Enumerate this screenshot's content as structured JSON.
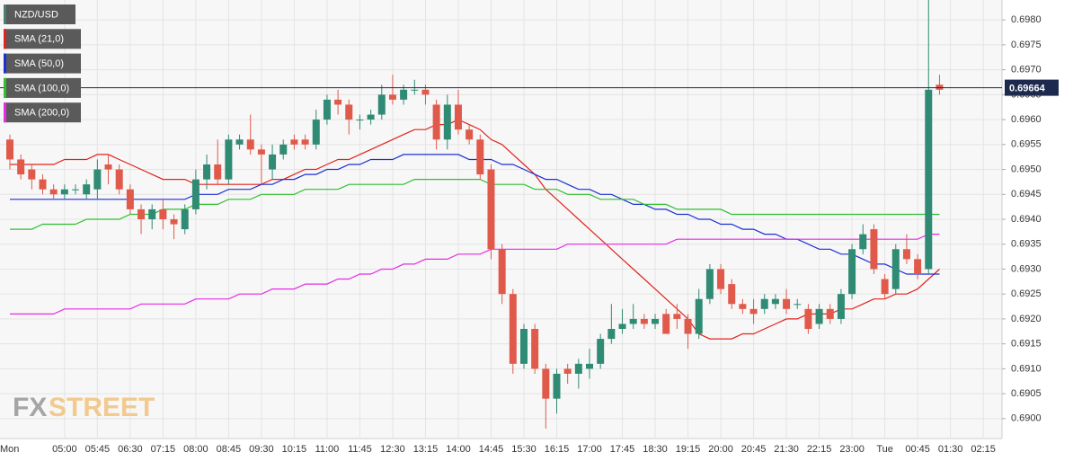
{
  "chart_data": {
    "type": "candlestick",
    "categories": [
      "Mon",
      null,
      null,
      null,
      null,
      "05:00",
      null,
      null,
      "05:45",
      null,
      null,
      "06:30",
      null,
      null,
      "07:15",
      null,
      null,
      "08:00",
      null,
      null,
      "08:45",
      null,
      null,
      "09:30",
      null,
      null,
      "10:15",
      null,
      null,
      "11:00",
      null,
      null,
      "11:45",
      null,
      null,
      "12:30",
      null,
      null,
      "13:15",
      null,
      null,
      "14:00",
      null,
      null,
      "14:45",
      null,
      null,
      "15:30",
      null,
      null,
      "16:15",
      null,
      null,
      "17:00",
      null,
      null,
      "17:45",
      null,
      null,
      "18:30",
      null,
      null,
      "19:15",
      null,
      null,
      "20:00",
      null,
      null,
      "20:45",
      null,
      null,
      "21:30",
      null,
      null,
      "22:15",
      null,
      null,
      "23:00",
      null,
      null,
      "Tue",
      null,
      null,
      "00:45",
      null,
      null,
      "01:30",
      null,
      null,
      "02:15"
    ],
    "series": [
      {
        "name": "NZD/USD",
        "color": "#4a7f6c",
        "up_color": "#2f8b73",
        "down_color": "#e05a4b",
        "open": [
          0.6956,
          0.6952,
          0.695,
          0.6948,
          0.6946,
          0.6945,
          0.6946,
          0.6945,
          0.6946,
          0.6951,
          0.695,
          0.6946,
          0.6942,
          0.694,
          0.6942,
          0.694,
          0.6938,
          0.6942,
          0.6948,
          0.6951,
          0.6948,
          0.6955,
          0.6956,
          0.6954,
          0.695,
          0.6953,
          0.6956,
          0.6956,
          0.6955,
          0.696,
          0.6964,
          0.6963,
          0.696,
          0.696,
          0.6961,
          0.6965,
          0.6964,
          0.6966,
          0.6966,
          0.6963,
          0.6956,
          0.6963,
          0.6958,
          0.6956,
          0.695,
          0.6934,
          0.6925,
          0.6911,
          0.6918,
          0.691,
          0.6904,
          0.691,
          0.6909,
          0.691,
          0.6911,
          0.6916,
          0.6918,
          0.6919,
          0.692,
          0.6919,
          0.6921,
          0.6921,
          0.692,
          0.6917,
          0.6924,
          0.693,
          0.6927,
          0.6923,
          0.6922,
          0.6922,
          0.6923,
          0.6924,
          0.6923,
          0.6922,
          0.6919,
          0.6922,
          0.692,
          0.6925,
          0.6934,
          0.6938,
          0.6928,
          0.6926,
          0.6934,
          0.6932,
          0.693,
          0.6967,
          null,
          null,
          null,
          null
        ],
        "high": [
          0.6957,
          0.6953,
          0.6951,
          0.6949,
          0.6947,
          0.6947,
          0.6947,
          0.6948,
          0.6952,
          0.6953,
          0.6951,
          0.6947,
          0.6943,
          0.6943,
          0.6944,
          0.6941,
          0.6943,
          0.695,
          0.6953,
          0.6956,
          0.6957,
          0.6957,
          0.6961,
          0.6955,
          0.6955,
          0.6956,
          0.6957,
          0.6957,
          0.6962,
          0.6965,
          0.6966,
          0.6964,
          0.6961,
          0.6962,
          0.6967,
          0.6969,
          0.6967,
          0.6968,
          0.6967,
          0.6964,
          0.6965,
          0.6966,
          0.6959,
          0.6957,
          0.6951,
          0.6935,
          0.6926,
          0.6919,
          0.6919,
          0.6911,
          0.691,
          0.6911,
          0.6912,
          0.6914,
          0.6917,
          0.6923,
          0.6922,
          0.6923,
          0.6921,
          0.6921,
          0.6922,
          0.6923,
          0.6921,
          0.6926,
          0.6931,
          0.6931,
          0.6928,
          0.6924,
          0.6924,
          0.6925,
          0.6925,
          0.6926,
          0.6924,
          0.6923,
          0.6923,
          0.6923,
          0.6926,
          0.6935,
          0.6939,
          0.6939,
          0.6929,
          0.6935,
          0.6937,
          0.6933,
          0.6984,
          0.6969,
          null,
          null,
          null,
          null
        ],
        "low": [
          0.695,
          0.6948,
          0.6946,
          0.6945,
          0.6944,
          0.6944,
          0.6945,
          0.6944,
          0.6944,
          0.6947,
          0.6945,
          0.6941,
          0.6937,
          0.6938,
          0.6938,
          0.6936,
          0.6937,
          0.6941,
          0.6946,
          0.6947,
          0.6947,
          0.6954,
          0.6953,
          0.6947,
          0.6948,
          0.6952,
          0.6954,
          0.6954,
          0.6954,
          0.6959,
          0.6961,
          0.6957,
          0.6958,
          0.6959,
          0.696,
          0.6963,
          0.6963,
          0.6965,
          0.6963,
          0.6954,
          0.6954,
          0.6957,
          0.6955,
          0.6948,
          0.6932,
          0.6923,
          0.6909,
          0.691,
          0.6909,
          0.6898,
          0.6901,
          0.6907,
          0.6906,
          0.6908,
          0.691,
          0.6915,
          0.6917,
          0.6918,
          0.6918,
          0.6918,
          0.6917,
          0.6918,
          0.6914,
          0.6916,
          0.6923,
          0.6925,
          0.6922,
          0.6921,
          0.6919,
          0.6921,
          0.6922,
          0.6921,
          0.6922,
          0.6917,
          0.6918,
          0.6919,
          0.6919,
          0.6924,
          0.6933,
          0.6929,
          0.6924,
          0.6925,
          0.6931,
          0.6928,
          0.6929,
          0.6965,
          null,
          null,
          null,
          null
        ],
        "close": [
          0.6952,
          0.6949,
          0.6948,
          0.6946,
          0.6945,
          0.6946,
          0.6946,
          0.6947,
          0.695,
          0.695,
          0.6946,
          0.6942,
          0.694,
          0.6942,
          0.694,
          0.6939,
          0.6942,
          0.6948,
          0.6951,
          0.6948,
          0.6956,
          0.6956,
          0.6954,
          0.6953,
          0.6953,
          0.6955,
          0.6955,
          0.6955,
          0.696,
          0.6964,
          0.6963,
          0.696,
          0.696,
          0.6961,
          0.6965,
          0.6964,
          0.6966,
          0.6966,
          0.6965,
          0.6956,
          0.6963,
          0.6958,
          0.6956,
          0.6949,
          0.6934,
          0.6925,
          0.6911,
          0.6918,
          0.691,
          0.6904,
          0.6909,
          0.6909,
          0.6911,
          0.6911,
          0.6916,
          0.6918,
          0.6919,
          0.692,
          0.6919,
          0.692,
          0.6917,
          0.692,
          0.6917,
          0.6924,
          0.693,
          0.6926,
          0.6923,
          0.6922,
          0.6921,
          0.6924,
          0.6924,
          0.6922,
          0.6923,
          0.6918,
          0.6922,
          0.692,
          0.6925,
          0.6934,
          0.6937,
          0.693,
          0.6925,
          0.6934,
          0.6932,
          0.6929,
          0.6966,
          0.6966,
          null,
          null,
          null,
          null
        ]
      },
      {
        "name": "SMA (21,0)",
        "color": "#e0231c",
        "values": [
          0.6951,
          0.6951,
          0.6951,
          0.6951,
          0.6951,
          0.6952,
          0.6952,
          0.6952,
          0.6953,
          0.6953,
          0.6952,
          0.6951,
          0.695,
          0.6949,
          0.6948,
          0.6948,
          0.6948,
          0.6947,
          0.6947,
          0.6947,
          0.6947,
          0.6947,
          0.6947,
          0.6947,
          0.6948,
          0.6948,
          0.6949,
          0.695,
          0.695,
          0.6951,
          0.6952,
          0.6952,
          0.6953,
          0.6954,
          0.6955,
          0.6956,
          0.6957,
          0.6958,
          0.6958,
          0.6959,
          0.6959,
          0.696,
          0.6959,
          0.6958,
          0.6956,
          0.6955,
          0.6953,
          0.6951,
          0.6949,
          0.6946,
          0.6944,
          0.6942,
          0.694,
          0.6938,
          0.6936,
          0.6934,
          0.6932,
          0.693,
          0.6928,
          0.6926,
          0.6924,
          0.6922,
          0.692,
          0.6917,
          0.6916,
          0.6916,
          0.6916,
          0.6917,
          0.6917,
          0.6918,
          0.6919,
          0.692,
          0.692,
          0.6921,
          0.6921,
          0.6921,
          0.6922,
          0.6922,
          0.6923,
          0.6924,
          0.6924,
          0.6925,
          0.6925,
          0.6926,
          0.6928,
          0.693,
          null,
          null,
          null,
          null
        ]
      },
      {
        "name": "SMA (50,0)",
        "color": "#1c2fd6",
        "values": [
          0.6944,
          0.6944,
          0.6944,
          0.6944,
          0.6944,
          0.6944,
          0.6944,
          0.6944,
          0.6944,
          0.6944,
          0.6944,
          0.6944,
          0.6944,
          0.6944,
          0.6944,
          0.6944,
          0.6944,
          0.6945,
          0.6945,
          0.6945,
          0.6946,
          0.6946,
          0.6946,
          0.6947,
          0.6947,
          0.6948,
          0.6948,
          0.6949,
          0.6949,
          0.695,
          0.695,
          0.6951,
          0.6951,
          0.6952,
          0.6952,
          0.6952,
          0.6953,
          0.6953,
          0.6953,
          0.6953,
          0.6953,
          0.6953,
          0.6952,
          0.6952,
          0.6952,
          0.6951,
          0.6951,
          0.695,
          0.6949,
          0.6948,
          0.6948,
          0.6947,
          0.6946,
          0.6946,
          0.6945,
          0.6945,
          0.6944,
          0.6943,
          0.6943,
          0.6942,
          0.6942,
          0.6941,
          0.6941,
          0.694,
          0.694,
          0.6939,
          0.6939,
          0.6938,
          0.6938,
          0.6937,
          0.6937,
          0.6936,
          0.6936,
          0.6935,
          0.6934,
          0.6934,
          0.6933,
          0.6933,
          0.6932,
          0.6931,
          0.6931,
          0.693,
          0.6929,
          0.6929,
          0.6929,
          0.6929,
          null,
          null,
          null,
          null
        ]
      },
      {
        "name": "SMA (100,0)",
        "color": "#2fbf2f",
        "values": [
          0.6938,
          0.6938,
          0.6938,
          0.6939,
          0.6939,
          0.6939,
          0.6939,
          0.694,
          0.694,
          0.694,
          0.694,
          0.6941,
          0.6941,
          0.6941,
          0.6942,
          0.6942,
          0.6942,
          0.6943,
          0.6943,
          0.6943,
          0.6944,
          0.6944,
          0.6944,
          0.6945,
          0.6945,
          0.6945,
          0.6945,
          0.6946,
          0.6946,
          0.6946,
          0.6946,
          0.6947,
          0.6947,
          0.6947,
          0.6947,
          0.6947,
          0.6947,
          0.6948,
          0.6948,
          0.6948,
          0.6948,
          0.6948,
          0.6948,
          0.6948,
          0.6947,
          0.6947,
          0.6947,
          0.6947,
          0.6946,
          0.6946,
          0.6946,
          0.6945,
          0.6945,
          0.6945,
          0.6944,
          0.6944,
          0.6944,
          0.6944,
          0.6943,
          0.6943,
          0.6943,
          0.6942,
          0.6942,
          0.6942,
          0.6942,
          0.6942,
          0.6941,
          0.6941,
          0.6941,
          0.6941,
          0.6941,
          0.6941,
          0.6941,
          0.6941,
          0.6941,
          0.6941,
          0.6941,
          0.6941,
          0.6941,
          0.6941,
          0.6941,
          0.6941,
          0.6941,
          0.6941,
          0.6941,
          0.6941,
          null,
          null,
          null,
          null
        ]
      },
      {
        "name": "SMA (200,0)",
        "color": "#e52be5",
        "values": [
          0.6921,
          0.6921,
          0.6921,
          0.6921,
          0.6921,
          0.6922,
          0.6922,
          0.6922,
          0.6922,
          0.6922,
          0.6922,
          0.6922,
          0.6923,
          0.6923,
          0.6923,
          0.6923,
          0.6923,
          0.6924,
          0.6924,
          0.6924,
          0.6924,
          0.6925,
          0.6925,
          0.6925,
          0.6926,
          0.6926,
          0.6926,
          0.6927,
          0.6927,
          0.6927,
          0.6928,
          0.6928,
          0.6929,
          0.6929,
          0.693,
          0.693,
          0.6931,
          0.6931,
          0.6932,
          0.6932,
          0.6932,
          0.6933,
          0.6933,
          0.6933,
          0.6934,
          0.6934,
          0.6934,
          0.6934,
          0.6934,
          0.6934,
          0.6934,
          0.6935,
          0.6935,
          0.6935,
          0.6935,
          0.6935,
          0.6935,
          0.6935,
          0.6935,
          0.6935,
          0.6935,
          0.6936,
          0.6936,
          0.6936,
          0.6936,
          0.6936,
          0.6936,
          0.6936,
          0.6936,
          0.6936,
          0.6936,
          0.6936,
          0.6936,
          0.6936,
          0.6936,
          0.6936,
          0.6936,
          0.6936,
          0.6936,
          0.6936,
          0.6936,
          0.6936,
          0.6936,
          0.6936,
          0.6937,
          0.6937,
          null,
          null,
          null,
          null
        ]
      }
    ],
    "ylim": [
      0.6896,
      0.6984
    ],
    "yticks": [
      {
        "value": 0.69,
        "label": "0.6900"
      },
      {
        "value": 0.6905,
        "label": "0.6905"
      },
      {
        "value": 0.691,
        "label": "0.6910"
      },
      {
        "value": 0.6915,
        "label": "0.6915"
      },
      {
        "value": 0.692,
        "label": "0.6920"
      },
      {
        "value": 0.6925,
        "label": "0.6925"
      },
      {
        "value": 0.693,
        "label": "0.6930"
      },
      {
        "value": 0.6935,
        "label": "0.6935"
      },
      {
        "value": 0.694,
        "label": "0.6940"
      },
      {
        "value": 0.6945,
        "label": "0.6945"
      },
      {
        "value": 0.695,
        "label": "0.6950"
      },
      {
        "value": 0.6955,
        "label": "0.6955"
      },
      {
        "value": 0.696,
        "label": "0.6960"
      },
      {
        "value": 0.6965,
        "label": "0.6965"
      },
      {
        "value": 0.697,
        "label": "0.6970"
      },
      {
        "value": 0.6975,
        "label": "0.6975"
      },
      {
        "value": 0.698,
        "label": "0.6980"
      }
    ],
    "last_price": 0.69664,
    "last_price_color": "#1d2a4d",
    "grid": true,
    "legend": "top-left",
    "watermark": [
      "FX",
      "STREET"
    ]
  }
}
